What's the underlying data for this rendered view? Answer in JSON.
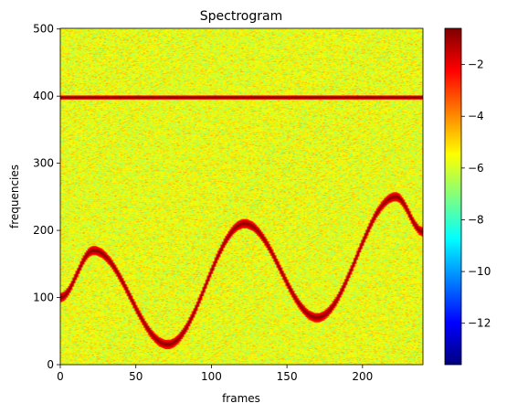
{
  "chart_data": {
    "type": "heatmap",
    "title": "Spectrogram",
    "xlabel": "frames",
    "ylabel": "frequencies",
    "xlim": [
      0,
      240
    ],
    "ylim": [
      0,
      501
    ],
    "x_ticks": [
      0,
      50,
      100,
      150,
      200
    ],
    "y_ticks": [
      0,
      100,
      200,
      300,
      400,
      500
    ],
    "colormap": "jet",
    "colorbar": {
      "range": [
        -13.6,
        -0.6
      ],
      "ticks": [
        -12,
        -10,
        -8,
        -6,
        -4,
        -2
      ],
      "tick_labels": [
        "−12",
        "−10",
        "−8",
        "−6",
        "−4",
        "−2"
      ]
    },
    "background_noise_level": -5.7,
    "signal_level": -0.6,
    "tones": [
      {
        "label": "constant tone",
        "frequency": 398
      }
    ],
    "chirp": {
      "label": "sinusoidal frequency track",
      "points": [
        {
          "frame": 0,
          "frequency": 100
        },
        {
          "frame": 22,
          "frequency": 170
        },
        {
          "frame": 71,
          "frequency": 30
        },
        {
          "frame": 122,
          "frequency": 210
        },
        {
          "frame": 170,
          "frequency": 70
        },
        {
          "frame": 222,
          "frequency": 250
        },
        {
          "frame": 240,
          "frequency": 198
        }
      ]
    }
  }
}
